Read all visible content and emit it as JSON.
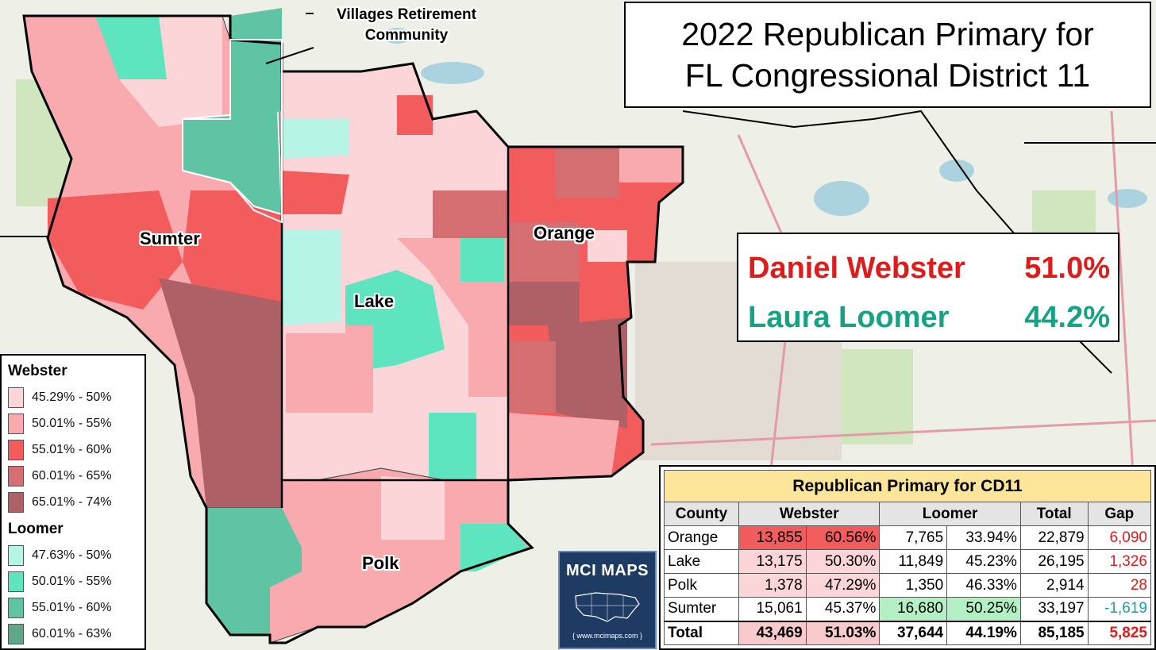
{
  "title": {
    "line1": "2022 Republican Primary for",
    "line2": "FL Congressional District 11"
  },
  "callout": "Villages Retirement Community",
  "counties": [
    "Sumter",
    "Lake",
    "Orange",
    "Polk"
  ],
  "results": [
    {
      "name": "Daniel Webster",
      "pct": "51.0%"
    },
    {
      "name": "Laura Loomer",
      "pct": "44.2%"
    }
  ],
  "legend": {
    "webster_heading": "Webster",
    "loomer_heading": "Loomer",
    "webster_bins": [
      {
        "range": "45.29% - 50%",
        "color": "#fbd5d7"
      },
      {
        "range": "50.01% - 55%",
        "color": "#f9aaae"
      },
      {
        "range": "55.01% - 60%",
        "color": "#f35c5c"
      },
      {
        "range": "60.01% - 65%",
        "color": "#d46e70"
      },
      {
        "range": "65.01% - 74%",
        "color": "#ad6166"
      }
    ],
    "loomer_bins": [
      {
        "range": "47.63% - 50%",
        "color": "#b6f5e5"
      },
      {
        "range": "50.01% - 55%",
        "color": "#5fe4c0"
      },
      {
        "range": "55.01% - 60%",
        "color": "#5ec4a3"
      },
      {
        "range": "60.01% - 63%",
        "color": "#5ea88a"
      }
    ]
  },
  "logo": {
    "title": "MCI MAPS",
    "url": "{ www.mcimaps.com }"
  },
  "table": {
    "title": "Republican Primary for CD11",
    "headers": [
      "County",
      "Webster",
      "Loomer",
      "Total",
      "Gap"
    ],
    "rows": [
      {
        "county": "Orange",
        "w_votes": "13,855",
        "w_pct": "60.56%",
        "l_votes": "7,765",
        "l_pct": "33.94%",
        "total": "22,879",
        "gap": "6,090"
      },
      {
        "county": "Lake",
        "w_votes": "13,175",
        "w_pct": "50.30%",
        "l_votes": "11,849",
        "l_pct": "45.23%",
        "total": "26,195",
        "gap": "1,326"
      },
      {
        "county": "Polk",
        "w_votes": "1,378",
        "w_pct": "47.29%",
        "l_votes": "1,350",
        "l_pct": "46.33%",
        "total": "2,914",
        "gap": "28"
      },
      {
        "county": "Sumter",
        "w_votes": "15,061",
        "w_pct": "45.37%",
        "l_votes": "16,680",
        "l_pct": "50.25%",
        "total": "33,197",
        "gap": "-1,619"
      }
    ],
    "total": {
      "county": "Total",
      "w_votes": "43,469",
      "w_pct": "51.03%",
      "l_votes": "37,644",
      "l_pct": "44.19%",
      "total": "85,185",
      "gap": "5,825"
    }
  },
  "colors": {
    "webster_text": "#dd1c1c",
    "loomer_text": "#17a284",
    "table_title_bg": "#fde599",
    "orange_webster_cell": "#f35c5c",
    "webster_light_cell": "#fbd5d7",
    "webster_total_cell": "#f9c9cc",
    "loomer_sumter_cell": "#b3f1c4"
  }
}
